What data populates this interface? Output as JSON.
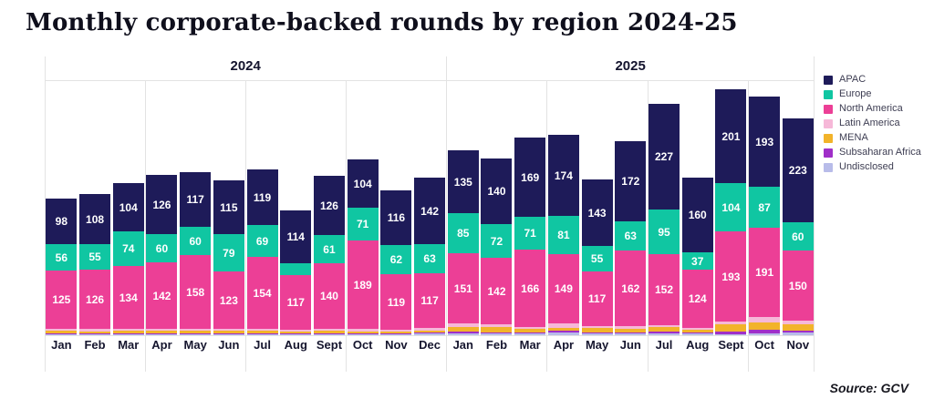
{
  "title": "Monthly corporate-backed rounds by region 2024-25",
  "source": {
    "text": "Source: GCV"
  },
  "legend": [
    {
      "label": "APAC",
      "color": "#1e1b59"
    },
    {
      "label": "Europe",
      "color": "#10c6a2"
    },
    {
      "label": "North America",
      "color": "#ec3f96"
    },
    {
      "label": "Latin America",
      "color": "#f6b8d8"
    },
    {
      "label": "MENA",
      "color": "#f2b32a"
    },
    {
      "label": "Subsaharan Africa",
      "color": "#a02fc8"
    },
    {
      "label": "Undisclosed",
      "color": "#b8bce9"
    }
  ],
  "chart_data": {
    "type": "bar",
    "stacked": true,
    "title": "Monthly corporate-backed rounds by region 2024-25",
    "xlabel": "",
    "ylabel": "",
    "ylim": [
      0,
      545
    ],
    "grid": "quarter-vertical-lines",
    "legend_position": "right",
    "year_groups": [
      {
        "label": "2024",
        "months": 12
      },
      {
        "label": "2025",
        "months": 11
      }
    ],
    "categories": [
      "Jan",
      "Feb",
      "Mar",
      "Apr",
      "May",
      "Jun",
      "Jul",
      "Aug",
      "Sept",
      "Oct",
      "Nov",
      "Dec",
      "Jan",
      "Feb",
      "Mar",
      "Apr",
      "May",
      "Jun",
      "Jul",
      "Aug",
      "Sept",
      "Oct",
      "Nov"
    ],
    "series": [
      {
        "name": "APAC",
        "color": "#1e1b59",
        "labeled": true,
        "values": [
          98,
          108,
          104,
          126,
          117,
          115,
          119,
          114,
          126,
          104,
          116,
          142,
          135,
          140,
          169,
          174,
          143,
          172,
          227,
          160,
          201,
          193,
          223
        ]
      },
      {
        "name": "Europe",
        "color": "#10c6a2",
        "labeled": true,
        "values": [
          56,
          55,
          74,
          60,
          60,
          79,
          69,
          25,
          61,
          71,
          62,
          63,
          85,
          72,
          71,
          81,
          55,
          63,
          95,
          37,
          104,
          87,
          60
        ]
      },
      {
        "name": "North America",
        "color": "#ec3f96",
        "labeled": true,
        "values": [
          125,
          126,
          134,
          142,
          158,
          123,
          154,
          117,
          140,
          189,
          119,
          117,
          151,
          142,
          166,
          149,
          117,
          162,
          152,
          124,
          193,
          191,
          150
        ]
      },
      {
        "name": "Latin America",
        "color": "#f6b8d8",
        "labeled": false,
        "values": [
          4,
          5,
          4,
          3,
          4,
          3,
          4,
          3,
          3,
          6,
          4,
          5,
          7,
          5,
          4,
          10,
          3,
          6,
          4,
          4,
          6,
          11,
          8
        ]
      },
      {
        "name": "MENA",
        "color": "#f2b32a",
        "labeled": false,
        "values": [
          5,
          4,
          6,
          6,
          6,
          5,
          5,
          4,
          6,
          4,
          4,
          4,
          9,
          12,
          7,
          6,
          9,
          8,
          10,
          6,
          15,
          15,
          13
        ]
      },
      {
        "name": "Subsaharan Africa",
        "color": "#a02fc8",
        "labeled": false,
        "values": [
          2,
          2,
          2,
          1,
          2,
          2,
          1,
          1,
          1,
          1,
          1,
          1,
          3,
          2,
          2,
          3,
          1,
          2,
          3,
          2,
          5,
          7,
          4
        ]
      },
      {
        "name": "Undisclosed",
        "color": "#b8bce9",
        "labeled": false,
        "values": [
          2,
          2,
          2,
          2,
          1,
          2,
          2,
          2,
          2,
          2,
          2,
          3,
          3,
          3,
          4,
          6,
          3,
          4,
          3,
          3,
          2,
          4,
          5
        ]
      }
    ]
  }
}
